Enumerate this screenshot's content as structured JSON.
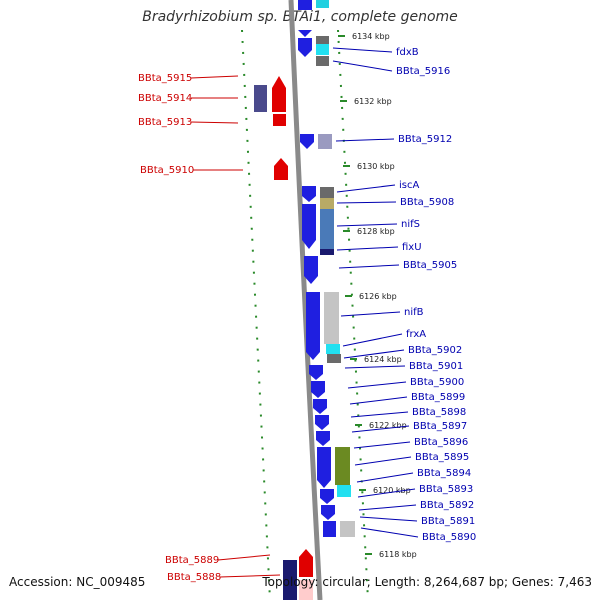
{
  "title": "Bradyrhizobium sp. BTAi1, complete genome",
  "accession": "Accession: NC_009485",
  "summary": "Topology: circular; Length: 8,264,687 bp; Genes: 7,463",
  "colors": {
    "backbone": "#8a8a8a",
    "forward_feature": "#1f1fe0",
    "reverse_feature": "#e00000",
    "label_forward": "#0000b0",
    "label_reverse": "#cc0000",
    "tick_dots": "#2a8a2a"
  },
  "ticks": [
    "6134 kbp",
    "6132 kbp",
    "6130 kbp",
    "6128 kbp",
    "6126 kbp",
    "6124 kbp",
    "6122 kbp",
    "6120 kbp",
    "6118 kbp"
  ],
  "genes_reverse": [
    "BBta_5915",
    "BBta_5914",
    "BBta_5913",
    "BBta_5910",
    "BBta_5889",
    "BBta_5888"
  ],
  "genes_forward": [
    "fdxB",
    "BBta_5916",
    "BBta_5912",
    "iscA",
    "BBta_5908",
    "nifS",
    "fixU",
    "BBta_5905",
    "nifB",
    "frxA",
    "BBta_5902",
    "BBta_5901",
    "BBta_5900",
    "BBta_5899",
    "BBta_5898",
    "BBta_5897",
    "BBta_5896",
    "BBta_5895",
    "BBta_5894",
    "BBta_5893",
    "BBta_5892",
    "BBta_5891",
    "BBta_5890"
  ]
}
